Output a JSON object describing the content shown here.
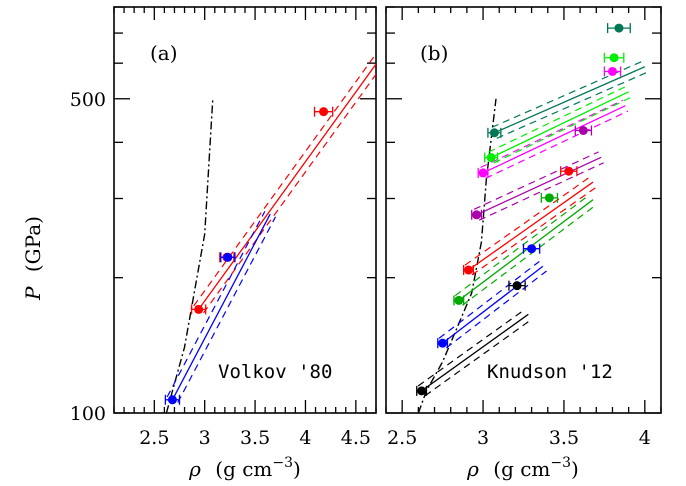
{
  "chart_data": [
    {
      "panel": "(a)",
      "type": "scatter",
      "source": "Volkov '80",
      "xlabel_symbol": "ρ",
      "xlabel_unit": "(g cm",
      "xlabel_exp": "−3",
      "xlabel_close": ")",
      "ylabel_symbol": "P",
      "ylabel_unit": "(GPa)",
      "xlim": [
        2.1,
        4.7
      ],
      "ylim": [
        100,
        800
      ],
      "yscale": "log",
      "xticks": [
        {
          "v": 2.5,
          "label": "2.5"
        },
        {
          "v": 3,
          "label": "3"
        },
        {
          "v": 3.5,
          "label": "3.5"
        },
        {
          "v": 4,
          "label": "4"
        },
        {
          "v": 4.5,
          "label": "4.5"
        }
      ],
      "yticks": [
        {
          "v": 100,
          "label": "100"
        },
        {
          "v": 500,
          "label": "500"
        }
      ],
      "reference_curve": {
        "style": "dash-dot",
        "color": "#000000",
        "points": [
          [
            2.62,
            100
          ],
          [
            2.8,
            140
          ],
          [
            3.0,
            250
          ],
          [
            3.08,
            500
          ]
        ]
      },
      "series": [
        {
          "color": "#ff0000",
          "point": {
            "x": 2.94,
            "y": 170,
            "xerr": 0.07
          },
          "start": 2.94,
          "end": 4.8,
          "slope": 1.55
        },
        {
          "color": "#ff0000",
          "point": {
            "x": 3.22,
            "y": 222,
            "xerr": 0.07
          },
          "start": null,
          "end": null,
          "slope": null
        },
        {
          "color": "#ff0000",
          "point": {
            "x": 4.18,
            "y": 468,
            "xerr": 0.09
          },
          "start": null,
          "end": null,
          "slope": null
        },
        {
          "color": "#0000ff",
          "point": {
            "x": 2.68,
            "y": 107,
            "xerr": 0.07
          },
          "start": 2.68,
          "end": 3.65,
          "slope": 2.13
        },
        {
          "color": "#0000ff",
          "point": {
            "x": 3.23,
            "y": 222,
            "xerr": 0.07
          },
          "start": null,
          "end": null,
          "slope": null
        }
      ]
    },
    {
      "panel": "(b)",
      "type": "scatter",
      "source": "Knudson '12",
      "xlabel_symbol": "ρ",
      "xlabel_unit": "(g cm",
      "xlabel_exp": "−3",
      "xlabel_close": ")",
      "xlim": [
        2.4,
        4.1
      ],
      "ylim": [
        100,
        800
      ],
      "yscale": "log",
      "xticks": [
        {
          "v": 2.5,
          "label": "2.5"
        },
        {
          "v": 3,
          "label": "3"
        },
        {
          "v": 3.5,
          "label": "3.5"
        },
        {
          "v": 4,
          "label": "4"
        }
      ],
      "yticks": [
        {
          "v": 100,
          "label": ""
        },
        {
          "v": 500,
          "label": ""
        }
      ],
      "reference_curve": {
        "style": "dash-dot",
        "color": "#000000",
        "points": [
          [
            2.6,
            100
          ],
          [
            2.65,
            112
          ],
          [
            2.75,
            130
          ],
          [
            2.85,
            158
          ],
          [
            2.93,
            185
          ],
          [
            2.99,
            240
          ],
          [
            3.02,
            330
          ],
          [
            3.08,
            500
          ]
        ]
      },
      "series": [
        {
          "color": "#000000",
          "point": {
            "x": 2.62,
            "y": 112,
            "xerr": 0.03
          },
          "start": 2.62,
          "end": 3.28,
          "slope": 1.29
        },
        {
          "color": "#000000",
          "point": {
            "x": 3.21,
            "y": 192,
            "xerr": 0.05
          },
          "start": null,
          "end": null,
          "slope": null
        },
        {
          "color": "#0000ff",
          "point": {
            "x": 2.75,
            "y": 143,
            "xerr": 0.03
          },
          "start": 2.75,
          "end": 3.37,
          "slope": 1.38
        },
        {
          "color": "#0000ff",
          "point": {
            "x": 3.3,
            "y": 232,
            "xerr": 0.05
          },
          "start": null,
          "end": null,
          "slope": null
        },
        {
          "color": "#00aa00",
          "point": {
            "x": 2.85,
            "y": 178,
            "xerr": 0.03
          },
          "start": 2.85,
          "end": 3.68,
          "slope": 1.35
        },
        {
          "color": "#00aa00",
          "point": {
            "x": 3.41,
            "y": 301,
            "xerr": 0.05
          },
          "start": null,
          "end": null,
          "slope": null
        },
        {
          "color": "#ff0000",
          "point": {
            "x": 2.91,
            "y": 208,
            "xerr": 0.03
          },
          "start": 2.91,
          "end": 3.68,
          "slope": 1.27
        },
        {
          "color": "#ff0000",
          "point": {
            "x": 3.53,
            "y": 345,
            "xerr": 0.05
          },
          "start": null,
          "end": null,
          "slope": null
        },
        {
          "color": "#aa00aa",
          "point": {
            "x": 2.96,
            "y": 276,
            "xerr": 0.03
          },
          "start": 2.96,
          "end": 3.73,
          "slope": 0.83
        },
        {
          "color": "#aa00aa",
          "point": {
            "x": 3.62,
            "y": 425,
            "xerr": 0.05
          },
          "start": null,
          "end": null,
          "slope": null
        },
        {
          "color": "#ff00ff",
          "point": {
            "x": 3.0,
            "y": 342,
            "xerr": 0.03
          },
          "start": 3.0,
          "end": 3.88,
          "slope": 0.85
        },
        {
          "color": "#00ee00",
          "point": {
            "x": 3.05,
            "y": 370,
            "xerr": 0.04
          },
          "start": 3.05,
          "end": 3.9,
          "slope": 0.86
        },
        {
          "color": "#ff00ff",
          "point": {
            "x": 3.8,
            "y": 575,
            "xerr": 0.05
          },
          "start": null,
          "end": null,
          "slope": null
        },
        {
          "color": "#00ee00",
          "point": {
            "x": 3.81,
            "y": 617,
            "xerr": 0.06
          },
          "start": null,
          "end": null,
          "slope": null
        },
        {
          "color": "#007755",
          "point": {
            "x": 3.07,
            "y": 420,
            "xerr": 0.04
          },
          "start": 3.07,
          "end": 4.0,
          "slope": 0.79
        },
        {
          "color": "#007755",
          "point": {
            "x": 3.84,
            "y": 718,
            "xerr": 0.07
          },
          "start": null,
          "end": null,
          "slope": null
        }
      ]
    }
  ]
}
